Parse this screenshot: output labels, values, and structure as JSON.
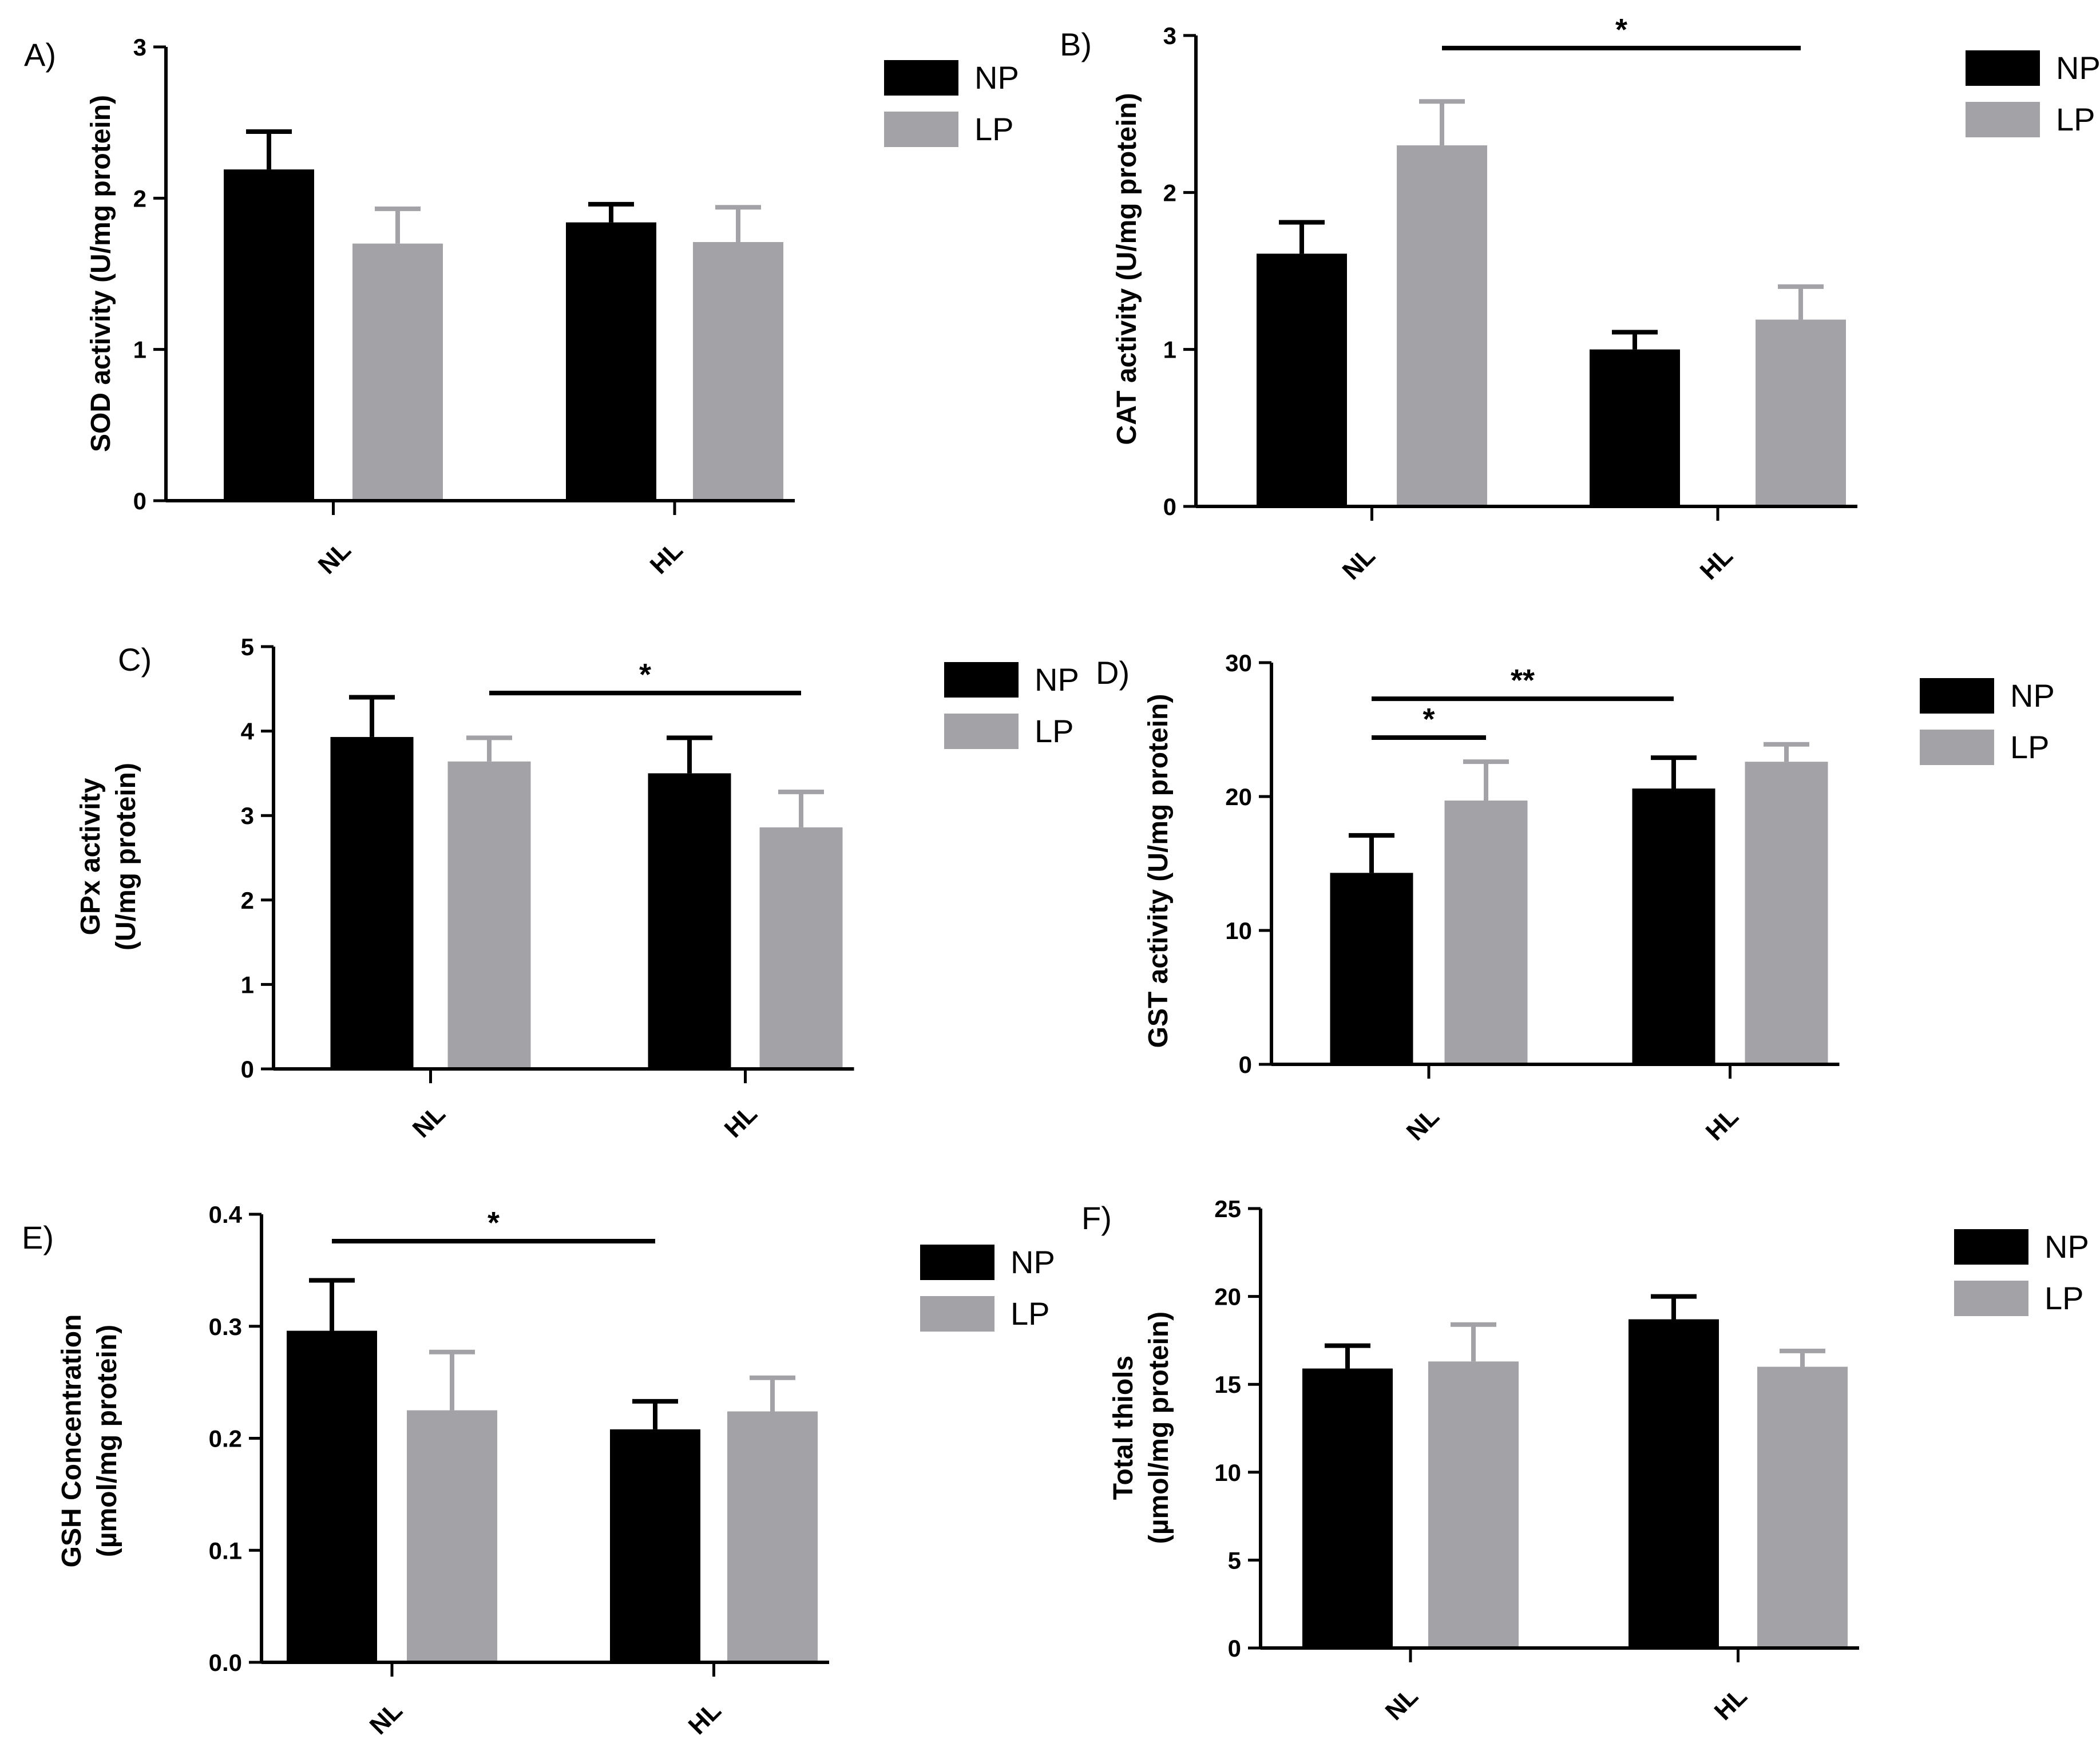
{
  "colors": {
    "NP": "#000000",
    "LP": "#a3a3a7",
    "axis": "#000000",
    "background": "#ffffff"
  },
  "chart_data": [
    {
      "id": "A",
      "panel_label": "A)",
      "type": "bar",
      "categories": [
        "NL",
        "HL"
      ],
      "series": [
        {
          "name": "NP",
          "values": [
            2.19,
            1.84
          ],
          "errors": [
            0.25,
            0.12
          ]
        },
        {
          "name": "LP",
          "values": [
            1.7,
            1.71
          ],
          "errors": [
            0.23,
            0.23
          ]
        }
      ],
      "ylabel_lines": [
        "SOD activity (U/mg protein)"
      ],
      "ylim": [
        0,
        3
      ],
      "yticks": [
        {
          "value": 0,
          "label": "0"
        },
        {
          "value": 1,
          "label": "1"
        },
        {
          "value": 2,
          "label": "2"
        },
        {
          "value": 3,
          "label": "3"
        }
      ],
      "significance": [],
      "legend": [
        "NP",
        "LP"
      ],
      "legend_position": "right"
    },
    {
      "id": "B",
      "panel_label": "B)",
      "type": "bar",
      "categories": [
        "NL",
        "HL"
      ],
      "series": [
        {
          "name": "NP",
          "values": [
            1.61,
            1.0
          ],
          "errors": [
            0.2,
            0.11
          ]
        },
        {
          "name": "LP",
          "values": [
            2.3,
            1.19
          ],
          "errors": [
            0.28,
            0.21
          ]
        }
      ],
      "ylabel_lines": [
        "CAT activity (U/mg protein)"
      ],
      "ylim": [
        0,
        3
      ],
      "yticks": [
        {
          "value": 0,
          "label": "0"
        },
        {
          "value": 1,
          "label": "1"
        },
        {
          "value": 2,
          "label": "2"
        },
        {
          "value": 3,
          "label": "3"
        }
      ],
      "significance": [
        {
          "from": [
            0,
            1
          ],
          "to": [
            1,
            1
          ],
          "y": 2.92,
          "label": "*"
        }
      ],
      "legend": [
        "NP",
        "LP"
      ],
      "legend_position": "right"
    },
    {
      "id": "C",
      "panel_label": "C)",
      "type": "bar",
      "categories": [
        "NL",
        "HL"
      ],
      "series": [
        {
          "name": "NP",
          "values": [
            3.93,
            3.5
          ],
          "errors": [
            0.47,
            0.42
          ]
        },
        {
          "name": "LP",
          "values": [
            3.64,
            2.86
          ],
          "errors": [
            0.28,
            0.42
          ]
        }
      ],
      "ylabel_lines": [
        "GPx activity",
        "(U/mg protein)"
      ],
      "ylim": [
        0,
        5
      ],
      "yticks": [
        {
          "value": 0,
          "label": "0"
        },
        {
          "value": 1,
          "label": "1"
        },
        {
          "value": 2,
          "label": "2"
        },
        {
          "value": 3,
          "label": "3"
        },
        {
          "value": 4,
          "label": "4"
        },
        {
          "value": 5,
          "label": "5"
        }
      ],
      "significance": [
        {
          "from": [
            0,
            1
          ],
          "to": [
            1,
            1
          ],
          "y": 4.45,
          "label": "*"
        }
      ],
      "legend": [
        "NP",
        "LP"
      ],
      "legend_position": "right"
    },
    {
      "id": "D",
      "panel_label": "D)",
      "type": "bar",
      "categories": [
        "NL",
        "HL"
      ],
      "series": [
        {
          "name": "NP",
          "values": [
            14.3,
            20.6
          ],
          "errors": [
            2.8,
            2.3
          ]
        },
        {
          "name": "LP",
          "values": [
            19.7,
            22.6
          ],
          "errors": [
            2.9,
            1.3
          ]
        }
      ],
      "ylabel_lines": [
        "GST activity (U/mg protein)"
      ],
      "ylim": [
        0,
        30
      ],
      "yticks": [
        {
          "value": 0,
          "label": "0"
        },
        {
          "value": 10,
          "label": "10"
        },
        {
          "value": 20,
          "label": "20"
        },
        {
          "value": 30,
          "label": "30"
        }
      ],
      "significance": [
        {
          "from": [
            0,
            0
          ],
          "to": [
            0,
            1
          ],
          "y": 24.4,
          "label": "*"
        },
        {
          "from": [
            0,
            0
          ],
          "to": [
            1,
            0
          ],
          "y": 27.3,
          "label": "**"
        }
      ],
      "legend": [
        "NP",
        "LP"
      ],
      "legend_position": "right"
    },
    {
      "id": "E",
      "panel_label": "E)",
      "type": "bar",
      "categories": [
        "NL",
        "HL"
      ],
      "series": [
        {
          "name": "NP",
          "values": [
            0.296,
            0.208
          ],
          "errors": [
            0.045,
            0.025
          ]
        },
        {
          "name": "LP",
          "values": [
            0.225,
            0.224
          ],
          "errors": [
            0.052,
            0.03
          ]
        }
      ],
      "ylabel_lines": [
        "GSH Concentration",
        "(µmol/mg protein)"
      ],
      "ylim": [
        0,
        0.4
      ],
      "yticks": [
        {
          "value": 0,
          "label": "0.0"
        },
        {
          "value": 0.1,
          "label": "0.1"
        },
        {
          "value": 0.2,
          "label": "0.2"
        },
        {
          "value": 0.3,
          "label": "0.3"
        },
        {
          "value": 0.4,
          "label": "0.4"
        }
      ],
      "significance": [
        {
          "from": [
            0,
            0
          ],
          "to": [
            1,
            0
          ],
          "y": 0.376,
          "label": "*"
        }
      ],
      "legend": [
        "NP",
        "LP"
      ],
      "legend_position": "right"
    },
    {
      "id": "F",
      "panel_label": "F)",
      "type": "bar",
      "categories": [
        "NL",
        "HL"
      ],
      "series": [
        {
          "name": "NP",
          "values": [
            15.9,
            18.7
          ],
          "errors": [
            1.3,
            1.3
          ]
        },
        {
          "name": "LP",
          "values": [
            16.3,
            16.0
          ],
          "errors": [
            2.1,
            0.9
          ]
        }
      ],
      "ylabel_lines": [
        "Total thiols",
        "(µmol/mg protein)"
      ],
      "ylim": [
        0,
        25
      ],
      "yticks": [
        {
          "value": 0,
          "label": "0"
        },
        {
          "value": 5,
          "label": "5"
        },
        {
          "value": 10,
          "label": "10"
        },
        {
          "value": 15,
          "label": "15"
        },
        {
          "value": 20,
          "label": "20"
        },
        {
          "value": 25,
          "label": "25"
        }
      ],
      "significance": [],
      "legend": [
        "NP",
        "LP"
      ],
      "legend_position": "right"
    }
  ]
}
